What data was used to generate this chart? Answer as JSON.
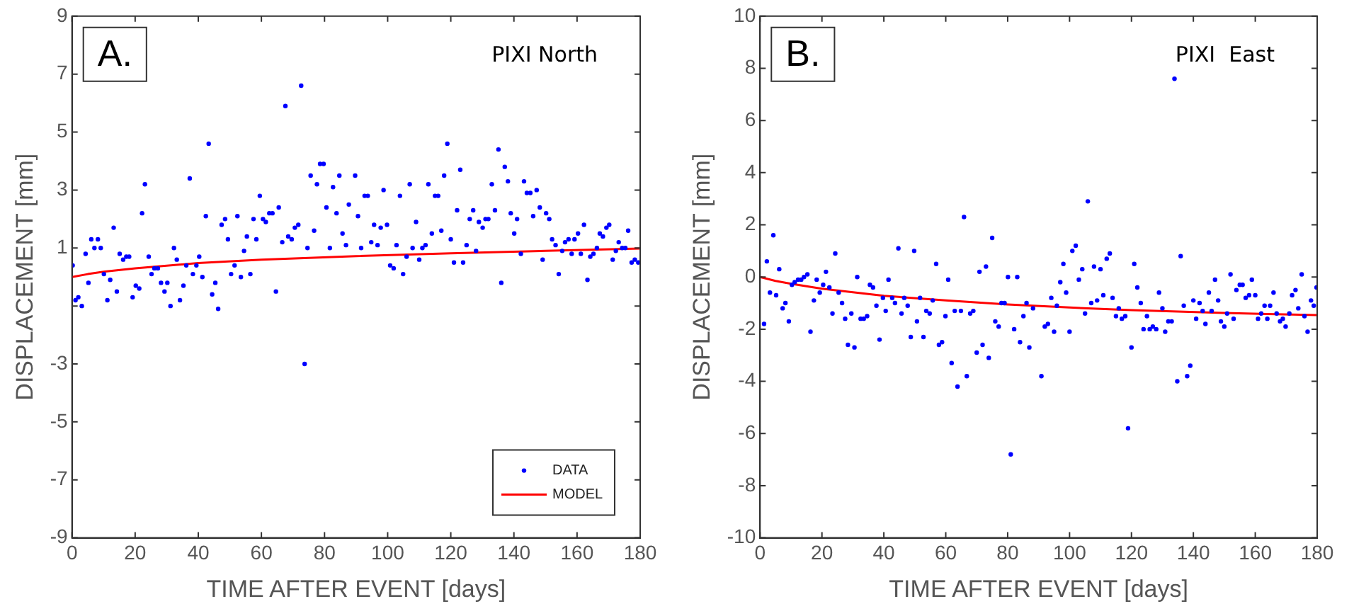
{
  "chart_data": [
    {
      "type": "scatter",
      "xlabel": "TIME AFTER EVENT [days]",
      "ylabel": "DISPLACEMENT [mm]",
      "xlim": [
        0,
        180
      ],
      "xticks": [
        0,
        20,
        40,
        60,
        80,
        100,
        120,
        140,
        160,
        180
      ],
      "ylim": [
        -9,
        9
      ],
      "yticks": [
        -9,
        -7,
        -5,
        -3,
        {
          "value": -1,
          "label": null
        },
        1,
        3,
        5,
        7,
        9
      ],
      "grid": false,
      "legend": "bottom right",
      "annotations": [
        "A.",
        "PIXI North"
      ],
      "series": [
        {
          "name": "DATA",
          "type": "scatter",
          "marker": "circle",
          "color": "#0000ff",
          "x": [
            0.2,
            1.1,
            2,
            3.1,
            4.3,
            5.2,
            6.1,
            7.1,
            8.2,
            9.1,
            10.1,
            11.2,
            12.1,
            13.2,
            14.2,
            15.1,
            16.2,
            17.2,
            18.1,
            19.2,
            20.2,
            21.3,
            22.2,
            23.1,
            24.3,
            25.2,
            26.1,
            27.2,
            28.2,
            29.3,
            30.2,
            31.2,
            32.3,
            33.2,
            34.2,
            35.3,
            36.2,
            37.3,
            38.3,
            39.4,
            40.3,
            41.3,
            42.4,
            43.3,
            44.4,
            45.4,
            46.3,
            47.4,
            48.5,
            49.4,
            50.4,
            51.5,
            52.4,
            53.5,
            54.5,
            55.4,
            56.5,
            57.5,
            58.4,
            59.5,
            60.5,
            61.4,
            62.5,
            63.5,
            64.6,
            65.5,
            66.6,
            67.6,
            68.5,
            69.6,
            70.6,
            71.7,
            72.6,
            73.7,
            74.6,
            75.6,
            76.7,
            77.6,
            78.6,
            79.7,
            80.6,
            81.7,
            82.7,
            83.8,
            84.7,
            85.7,
            86.8,
            87.7,
            89.7,
            90.6,
            91.6,
            92.7,
            93.7,
            94.8,
            95.7,
            96.8,
            97.8,
            98.7,
            99.8,
            100.8,
            101.9,
            102.8,
            103.9,
            104.9,
            106,
            107,
            107.9,
            109,
            110,
            111,
            112,
            112.9,
            114,
            115,
            116,
            117,
            117.9,
            118.9,
            120,
            121,
            122,
            123,
            123.9,
            125,
            126,
            127.1,
            128,
            128.9,
            130.1,
            131,
            131.9,
            133,
            134,
            135.1,
            136,
            137.1,
            138.1,
            139,
            140.1,
            141,
            142.2,
            143.2,
            144.1,
            145.2,
            146.1,
            147.2,
            148.2,
            149.1,
            150.2,
            151.2,
            152.1,
            153.2,
            154.2,
            155.3,
            156.2,
            157.3,
            158.3,
            159.2,
            160.3,
            161.2,
            162.2,
            163.3,
            164.2,
            165.2,
            166.3,
            167.2,
            168.2,
            169.3,
            170.2,
            171.3,
            172.3,
            173.2,
            174.3,
            175.3,
            176.2,
            177.3,
            178.3,
            179.4
          ],
          "values": [
            0.4,
            -0.8,
            -0.7,
            -1,
            0.8,
            -0.2,
            1.3,
            1,
            1.3,
            1,
            0.1,
            -0.8,
            -0.1,
            1.7,
            -0.5,
            0.8,
            0.6,
            0.7,
            0.7,
            -0.7,
            -0.3,
            -0.4,
            2.2,
            3.2,
            0.7,
            0.1,
            0.3,
            0.3,
            -0.2,
            -0.5,
            -0.2,
            -1,
            1,
            0.6,
            -0.8,
            -0.3,
            0.4,
            3.4,
            0.1,
            0.4,
            0.7,
            0,
            2.1,
            4.6,
            -0.6,
            -0.2,
            -1.1,
            1.8,
            2,
            1.3,
            0.1,
            0.4,
            2.1,
            0,
            0.9,
            1.4,
            0.1,
            2,
            1.3,
            2.8,
            2,
            1.9,
            2.2,
            2.2,
            -0.5,
            2.4,
            1.2,
            5.9,
            1.4,
            1.3,
            1.7,
            1.8,
            6.6,
            -3,
            1,
            3.5,
            1.6,
            3.2,
            3.9,
            3.9,
            2.4,
            1,
            3.1,
            2.2,
            3.5,
            1.5,
            1.1,
            2.5,
            3.5,
            2.1,
            1,
            2.8,
            2.8,
            1.2,
            1.8,
            1.1,
            1.7,
            3,
            1.8,
            0.4,
            0.3,
            1.1,
            2.8,
            0.1,
            0.7,
            3.2,
            1,
            1.9,
            0.6,
            1,
            1.1,
            3.2,
            1.5,
            2.8,
            2.8,
            1.6,
            3.5,
            4.6,
            1.3,
            0.5,
            2.3,
            3.7,
            0.5,
            1.1,
            2,
            2.3,
            0.9,
            1.9,
            1.7,
            2,
            2,
            3.2,
            2.3,
            4.4,
            -0.2,
            3.8,
            3.3,
            2.2,
            1.5,
            2,
            0.8,
            3.3,
            2.9,
            2.9,
            2.1,
            3,
            2.4,
            0.6,
            2.2,
            2,
            1.3,
            1.1,
            0.1,
            0.9,
            1.2,
            1.3,
            0.8,
            1.3,
            1.5,
            0.8,
            1.8,
            -0.1,
            0.7,
            0.8,
            1,
            1.5,
            1.4,
            1.7,
            1.8,
            0.6,
            0.9,
            1.2,
            1,
            1,
            1.6,
            0.5,
            0.6,
            0.5
          ]
        },
        {
          "name": "MODEL",
          "type": "line",
          "marker": "none",
          "color": "#ff0000",
          "x": [
            0,
            5,
            10,
            20,
            40,
            60,
            90,
            120,
            150,
            180
          ],
          "values": [
            0,
            0.1,
            0.18,
            0.3,
            0.48,
            0.6,
            0.72,
            0.82,
            0.9,
            0.98
          ]
        }
      ]
    },
    {
      "type": "scatter",
      "xlabel": "TIME AFTER EVENT [days]",
      "ylabel": "DISPLACEMENT [mm]",
      "xlim": [
        0,
        180
      ],
      "xticks": [
        0,
        20,
        40,
        60,
        80,
        100,
        120,
        140,
        160,
        180
      ],
      "ylim": [
        -10,
        10
      ],
      "yticks": [
        -10,
        -8,
        -6,
        -4,
        -2,
        0,
        2,
        4,
        6,
        8,
        10
      ],
      "grid": false,
      "annotations": [
        "B.",
        "PIXI  East"
      ],
      "series": [
        {
          "type": "scatter",
          "marker": "circle",
          "color": "#0000ff",
          "x": [
            1.3,
            2.2,
            3.2,
            4.3,
            5.2,
            6.2,
            7.3,
            8.2,
            9.3,
            10.3,
            11.2,
            12.3,
            13.3,
            14.2,
            15.3,
            16.3,
            17.4,
            18.3,
            19.3,
            20.4,
            21.3,
            22.4,
            23.4,
            24.3,
            25.4,
            26.5,
            27.5,
            28.4,
            29.5,
            30.5,
            31.4,
            32.5,
            33.5,
            34.6,
            35.5,
            36.5,
            37.6,
            38.6,
            39.7,
            40.6,
            41.5,
            42.7,
            43.6,
            44.7,
            45.7,
            46.6,
            47.7,
            48.7,
            49.8,
            50.7,
            51.7,
            52.8,
            53.7,
            54.8,
            55.8,
            56.9,
            57.8,
            58.8,
            59.9,
            60.8,
            61.9,
            62.9,
            63.8,
            64.9,
            65.9,
            66.8,
            67.9,
            68.9,
            70,
            70.9,
            71.9,
            73,
            73.9,
            75,
            76,
            77.1,
            78,
            79,
            80.1,
            81,
            82.1,
            83.1,
            84,
            85.1,
            86.1,
            87,
            88.2,
            90.9,
            92,
            93,
            94.1,
            95,
            95.9,
            97,
            98,
            98.9,
            100,
            100.9,
            102,
            103,
            104.1,
            105,
            105.9,
            107,
            107.9,
            108.9,
            110,
            110.9,
            112,
            113,
            113.9,
            115,
            115.9,
            116.9,
            118,
            118.9,
            120,
            120.9,
            121.9,
            123,
            123.9,
            125,
            125.9,
            126.9,
            128,
            128.9,
            130,
            130.9,
            131.9,
            133,
            133.9,
            134.8,
            135.9,
            136.9,
            138,
            139,
            140,
            140.9,
            142,
            143,
            143.9,
            145,
            145.9,
            147,
            148,
            148.9,
            150,
            150.9,
            152,
            153,
            153.9,
            155,
            155.9,
            156.9,
            158,
            158.9,
            160,
            160.9,
            161.9,
            163,
            163.9,
            164.8,
            165.9,
            166.9,
            168,
            168.9,
            169.8,
            171,
            171.9,
            173,
            173.9,
            175,
            175.9,
            176.9,
            178,
            178.9,
            179.8
          ],
          "values": [
            -1.8,
            0.6,
            -0.6,
            1.6,
            -0.7,
            0.3,
            -1.2,
            -1,
            -1.7,
            -0.3,
            -0.2,
            -0.1,
            -0.1,
            0,
            0.1,
            -2.1,
            -0.9,
            -0.1,
            -0.6,
            -0.3,
            0.2,
            -0.4,
            -1.4,
            0.9,
            -0.6,
            -1,
            -1.6,
            -2.6,
            -1.4,
            -2.7,
            0,
            -1.6,
            -1.6,
            -1.5,
            -0.3,
            -0.4,
            -1.1,
            -2.4,
            -0.8,
            -1.3,
            -0.1,
            -0.8,
            -1,
            1.1,
            -1.4,
            -0.8,
            -1.1,
            -2.3,
            1,
            -1.7,
            -0.8,
            -2.3,
            -1.3,
            -1.4,
            -0.9,
            0.5,
            -2.6,
            -2.5,
            -1.5,
            -0.1,
            -3.3,
            -1.3,
            -4.2,
            -1.3,
            2.3,
            -3.8,
            -1.4,
            -1.3,
            -2.9,
            0.2,
            -2.6,
            0.4,
            -3.1,
            1.5,
            -1.7,
            -1.9,
            -1,
            -1,
            0,
            -6.8,
            -2,
            0,
            -2.5,
            -1.5,
            -1,
            -2.7,
            -1.2,
            -3.8,
            -1.9,
            -1.8,
            -0.8,
            -2.1,
            -1.1,
            -0.2,
            0.5,
            -0.6,
            -2.1,
            1,
            1.2,
            -0.1,
            0.3,
            -1.4,
            2.9,
            -1,
            0.4,
            -0.9,
            0.3,
            -0.7,
            0.7,
            0.9,
            -0.8,
            -1.5,
            -1.2,
            -1.6,
            -1.5,
            -5.8,
            -2.7,
            0.5,
            -0.4,
            -1,
            -2,
            -1.5,
            -2,
            -1.9,
            -2,
            -0.6,
            -1.2,
            -2.1,
            -1.7,
            -1.7,
            7.6,
            -4,
            0.8,
            -1.1,
            -3.8,
            -3.4,
            -0.9,
            -1.6,
            -1,
            -1.3,
            -1.8,
            -0.6,
            -1.3,
            -0.1,
            -0.9,
            -1.7,
            -1.9,
            -1.4,
            0.1,
            -1.6,
            -0.5,
            -0.3,
            -0.3,
            -0.8,
            -0.7,
            -0.1,
            -0.7,
            -1.6,
            -1.4,
            -1.1,
            -1.6,
            -1.1,
            -0.6,
            -1.4,
            -1.7,
            -1.6,
            -1.9,
            -1.4,
            -0.7,
            -0.5,
            -1.2,
            0.1,
            -1.5,
            -2.1,
            -0.9,
            -1.1,
            -0.4
          ]
        },
        {
          "type": "line",
          "marker": "none",
          "color": "#ff0000",
          "x": [
            0,
            5,
            10,
            20,
            40,
            60,
            80,
            100,
            120,
            150,
            180
          ],
          "values": [
            0,
            -0.15,
            -0.26,
            -0.45,
            -0.72,
            -0.9,
            -1.05,
            -1.17,
            -1.27,
            -1.38,
            -1.46
          ]
        }
      ]
    }
  ]
}
